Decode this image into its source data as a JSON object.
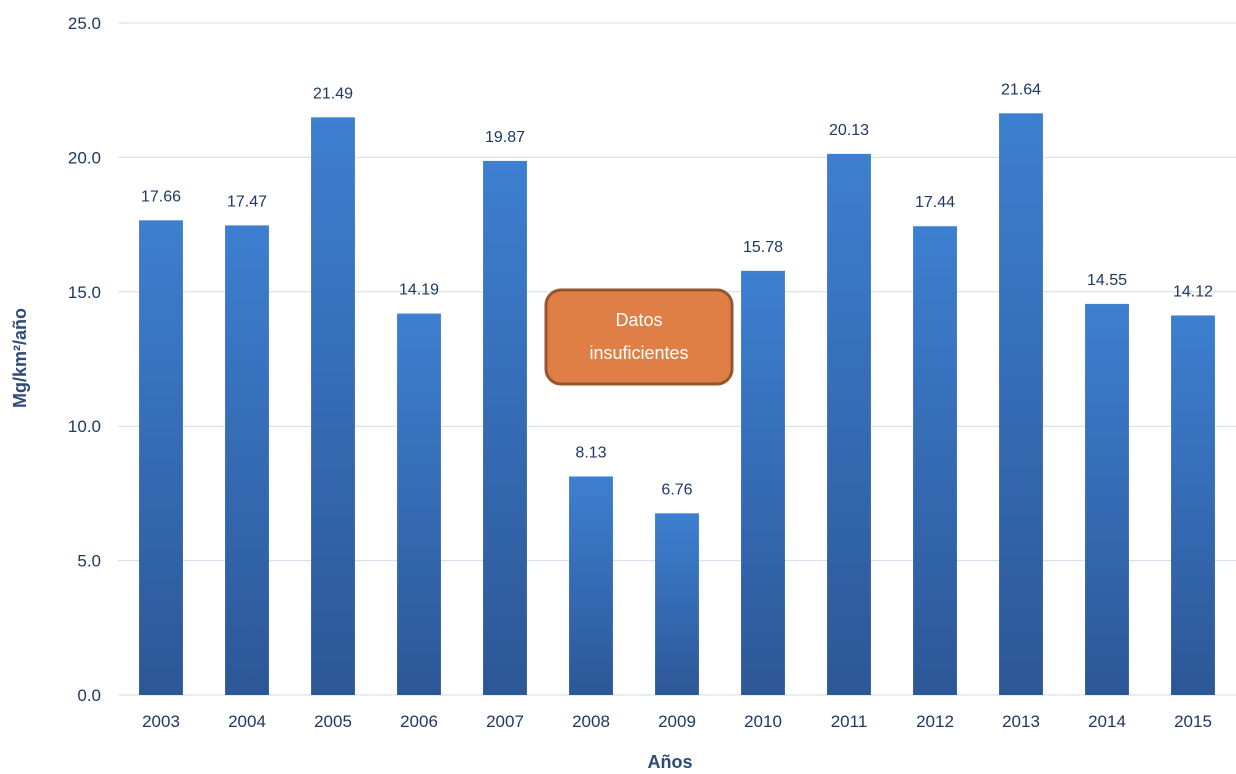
{
  "chart_data": {
    "type": "bar",
    "title": "",
    "xlabel": "Años",
    "ylabel": "Mg/km²/año",
    "categories": [
      "2003",
      "2004",
      "2005",
      "2006",
      "2007",
      "2008",
      "2009",
      "2010",
      "2011",
      "2012",
      "2013",
      "2014",
      "2015"
    ],
    "values": [
      17.66,
      17.47,
      21.49,
      14.19,
      19.87,
      8.13,
      6.76,
      15.78,
      20.13,
      17.44,
      21.64,
      14.55,
      14.12
    ],
    "data_labels": [
      "17.66",
      "17.47",
      "21.49",
      "14.19",
      "19.87",
      "8.13",
      "6.76",
      "15.78",
      "20.13",
      "17.44",
      "21.64",
      "14.55",
      "14.12"
    ],
    "ylim": [
      0,
      25
    ],
    "yticks": [
      0,
      5,
      10,
      15,
      20,
      25
    ],
    "ytick_labels": [
      "0.0",
      "5.0",
      "10.0",
      "15.0",
      "20.0",
      "25.0"
    ],
    "grid": true,
    "legend": "none",
    "colors": {
      "bar_top": "#3d7fd0",
      "bar_bottom": "#2c5797",
      "grid": "#d0dcec",
      "text": "#1f3864",
      "callout_fill": "#e07f45",
      "callout_border": "#96562d"
    },
    "annotation": {
      "lines": [
        "Datos",
        "insuficientes"
      ]
    }
  }
}
